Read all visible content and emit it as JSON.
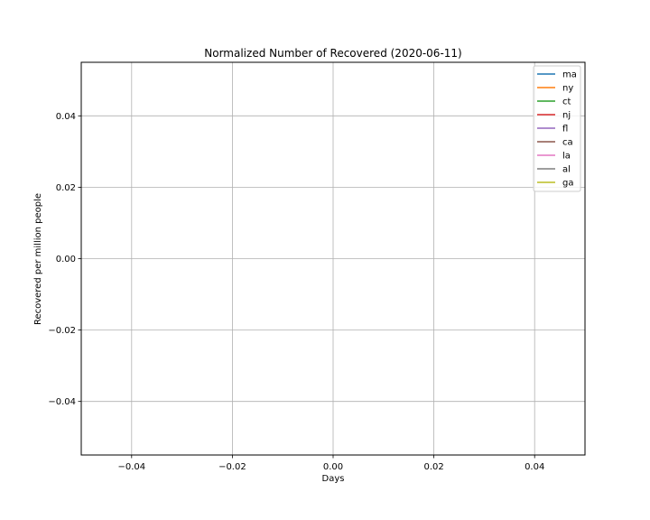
{
  "chart_data": {
    "type": "line",
    "title": "Normalized Number of Recovered (2020-06-11)",
    "xlabel": "Days",
    "ylabel": "Recovered per million people",
    "xlim": [
      -0.05,
      0.05
    ],
    "ylim": [
      -0.055,
      0.055
    ],
    "xticks": [
      -0.04,
      -0.02,
      0.0,
      0.02,
      0.04
    ],
    "xtick_labels": [
      "−0.04",
      "−0.02",
      "0.00",
      "0.02",
      "0.04"
    ],
    "yticks": [
      -0.04,
      -0.02,
      0.0,
      0.02,
      0.04
    ],
    "ytick_labels": [
      "−0.04",
      "−0.02",
      "0.00",
      "0.02",
      "0.04"
    ],
    "grid": true,
    "legend_position": "top-right",
    "series": [
      {
        "name": "ma",
        "color": "#1f77b4",
        "x": [],
        "y": []
      },
      {
        "name": "ny",
        "color": "#ff7f0e",
        "x": [],
        "y": []
      },
      {
        "name": "ct",
        "color": "#2ca02c",
        "x": [],
        "y": []
      },
      {
        "name": "nj",
        "color": "#d62728",
        "x": [],
        "y": []
      },
      {
        "name": "fl",
        "color": "#9467bd",
        "x": [],
        "y": []
      },
      {
        "name": "ca",
        "color": "#8c564b",
        "x": [],
        "y": []
      },
      {
        "name": "la",
        "color": "#e377c2",
        "x": [],
        "y": []
      },
      {
        "name": "al",
        "color": "#7f7f7f",
        "x": [],
        "y": []
      },
      {
        "name": "ga",
        "color": "#bcbd22",
        "x": [],
        "y": []
      }
    ]
  }
}
